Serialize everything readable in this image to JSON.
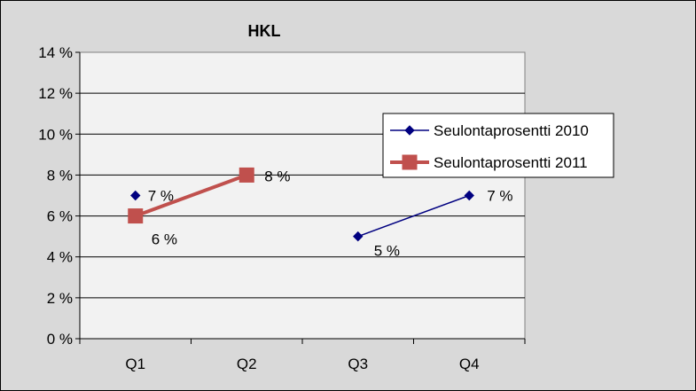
{
  "chart_data": {
    "type": "line",
    "title": "HKL",
    "xlabel": "",
    "ylabel": "",
    "categories": [
      "Q1",
      "Q2",
      "Q3",
      "Q4"
    ],
    "ylim": [
      0,
      14
    ],
    "ytick_step": 2,
    "ytick_labels": [
      "0 %",
      "2 %",
      "4 %",
      "6 %",
      "8 %",
      "10 %",
      "12 %",
      "14 %"
    ],
    "grid": true,
    "legend_position": "right",
    "series": [
      {
        "name": "Seulontaprosentti 2010",
        "values": [
          7,
          null,
          5,
          7
        ],
        "data_labels": [
          "7 %",
          "",
          "5 %",
          "7 %"
        ],
        "color": "#000080",
        "marker": "diamond"
      },
      {
        "name": "Seulontaprosentti 2011",
        "values": [
          6,
          8,
          null,
          null
        ],
        "data_labels": [
          "6 %",
          "8 %",
          "",
          ""
        ],
        "color": "#c0504d",
        "marker": "square"
      }
    ]
  }
}
